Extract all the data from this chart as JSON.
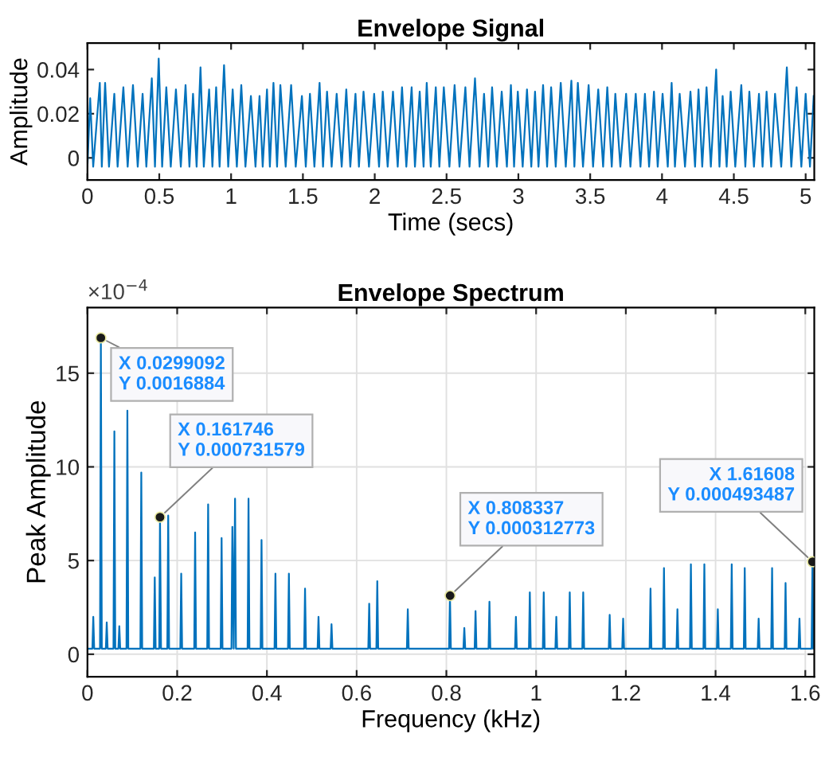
{
  "chart_data": [
    {
      "type": "line",
      "title": "Envelope Signal",
      "xlabel": "Time (secs)",
      "ylabel": "Amplitude",
      "xlim": [
        0,
        5.06
      ],
      "ylim": [
        -0.01,
        0.052
      ],
      "xticks": [
        0,
        0.5,
        1,
        1.5,
        2,
        2.5,
        3,
        3.5,
        4,
        4.5,
        5
      ],
      "yticks": [
        0,
        0.02,
        0.04
      ],
      "grid": false,
      "legend": false,
      "series": [
        {
          "color": "#0072bd",
          "x": [
            0,
            0.019,
            0.04,
            0.086,
            0.1,
            0.123,
            0.15,
            0.187,
            0.21,
            0.25,
            0.28,
            0.317,
            0.35,
            0.384,
            0.41,
            0.448,
            0.47,
            0.496,
            0.52,
            0.549,
            0.58,
            0.616,
            0.65,
            0.683,
            0.71,
            0.735,
            0.76,
            0.787,
            0.81,
            0.847,
            0.87,
            0.896,
            0.92,
            0.951,
            0.98,
            1.011,
            1.04,
            1.071,
            1.1,
            1.138,
            1.17,
            1.198,
            1.22,
            1.25,
            1.27,
            1.295,
            1.32,
            1.343,
            1.38,
            1.418,
            1.45,
            1.493,
            1.52,
            1.549,
            1.58,
            1.616,
            1.64,
            1.668,
            1.7,
            1.735,
            1.77,
            1.802,
            1.83,
            1.866,
            1.89,
            1.922,
            1.96,
            1.996,
            2.03,
            2.056,
            2.09,
            2.127,
            2.16,
            2.19,
            2.22,
            2.257,
            2.28,
            2.313,
            2.34,
            2.362,
            2.39,
            2.425,
            2.45,
            2.481,
            2.52,
            2.556,
            2.59,
            2.631,
            2.66,
            2.698,
            2.73,
            2.761,
            2.79,
            2.817,
            2.85,
            2.884,
            2.92,
            2.948,
            2.97,
            2.996,
            3.03,
            3.06,
            3.09,
            3.116,
            3.14,
            3.172,
            3.2,
            3.228,
            3.26,
            3.295,
            3.33,
            3.369,
            3.39,
            3.414,
            3.45,
            3.489,
            3.52,
            3.556,
            3.59,
            3.619,
            3.65,
            3.675,
            3.71,
            3.75,
            3.78,
            3.817,
            3.85,
            3.881,
            3.91,
            3.944,
            3.97,
            4.004,
            4.04,
            4.067,
            4.09,
            4.123,
            4.16,
            4.198,
            4.23,
            4.254,
            4.28,
            4.31,
            4.34,
            4.377,
            4.4,
            4.422,
            4.45,
            4.478,
            4.51,
            4.552,
            4.58,
            4.608,
            4.64,
            4.675,
            4.7,
            4.728,
            4.76,
            4.787,
            4.83,
            4.869,
            4.9,
            4.937,
            4.97,
            5.0,
            5.03,
            5.056
          ],
          "values": [
            -0.004,
            0.027,
            -0.004,
            0.034,
            -0.004,
            0.034,
            -0.004,
            0.029,
            -0.004,
            0.032,
            -0.004,
            0.033,
            -0.004,
            0.029,
            -0.004,
            0.036,
            -0.004,
            0.045,
            -0.004,
            0.032,
            -0.004,
            0.031,
            -0.004,
            0.033,
            -0.004,
            0.029,
            -0.004,
            0.041,
            -0.004,
            0.031,
            -0.004,
            0.032,
            -0.004,
            0.042,
            -0.004,
            0.031,
            -0.004,
            0.033,
            -0.004,
            0.028,
            -0.004,
            0.028,
            -0.004,
            0.031,
            -0.004,
            0.034,
            -0.004,
            0.033,
            -0.004,
            0.033,
            -0.004,
            0.028,
            -0.004,
            0.029,
            -0.004,
            0.034,
            -0.004,
            0.03,
            -0.004,
            0.029,
            -0.004,
            0.031,
            -0.004,
            0.029,
            -0.004,
            0.03,
            -0.004,
            0.029,
            -0.004,
            0.03,
            -0.004,
            0.03,
            -0.004,
            0.032,
            -0.004,
            0.032,
            -0.004,
            0.03,
            -0.004,
            0.034,
            -0.004,
            0.032,
            -0.004,
            0.032,
            -0.004,
            0.033,
            -0.004,
            0.032,
            -0.004,
            0.036,
            -0.004,
            0.029,
            -0.004,
            0.032,
            -0.004,
            0.03,
            -0.004,
            0.033,
            -0.004,
            0.03,
            -0.004,
            0.031,
            -0.004,
            0.03,
            -0.004,
            0.033,
            -0.004,
            0.032,
            -0.004,
            0.034,
            -0.004,
            0.035,
            -0.004,
            0.034,
            -0.004,
            0.033,
            -0.004,
            0.031,
            -0.004,
            0.032,
            -0.004,
            0.029,
            -0.004,
            0.029,
            -0.004,
            0.029,
            -0.004,
            0.029,
            -0.004,
            0.03,
            -0.004,
            0.029,
            -0.004,
            0.034,
            -0.004,
            0.029,
            -0.004,
            0.03,
            -0.004,
            0.031,
            -0.004,
            0.032,
            -0.004,
            0.04,
            -0.004,
            0.028,
            -0.004,
            0.03,
            -0.004,
            0.033,
            -0.004,
            0.03,
            -0.004,
            0.029,
            -0.004,
            0.03,
            -0.004,
            0.029,
            -0.004,
            0.041,
            -0.004,
            0.032,
            -0.004,
            0.029,
            -0.004,
            0.028
          ]
        }
      ]
    },
    {
      "type": "line",
      "title": "Envelope Spectrum",
      "xlabel": "Frequency (kHz)",
      "ylabel": "Peak Amplitude",
      "xlim": [
        0,
        1.62
      ],
      "ylim": [
        -1.2,
        18.5
      ],
      "xticks": [
        0,
        0.2,
        0.4,
        0.6,
        0.8,
        1,
        1.2,
        1.4,
        1.6
      ],
      "yticks": [
        0,
        5,
        10,
        15
      ],
      "grid": true,
      "legend": false,
      "annotations": [
        "×10$^{−4}$",
        {
          "text": "X 0.0299092\nY 0.0016884",
          "x": 0.0299092,
          "y": 16.884
        },
        {
          "text": "X 0.161746\nY 0.000731579",
          "x": 0.161746,
          "y": 7.31579
        },
        {
          "text": "X 0.808337\nY 0.000312773",
          "x": 0.808337,
          "y": 3.12773
        },
        {
          "text": "X 1.61608\nY 0.000493487",
          "x": 1.61608,
          "y": 4.93487
        }
      ],
      "series": [
        {
          "color": "#0072bd",
          "x": [
            0,
            0.011,
            0.013,
            0.015,
            0.028,
            0.0299,
            0.032,
            0.041,
            0.043,
            0.045,
            0.058,
            0.06,
            0.062,
            0.069,
            0.071,
            0.073,
            0.087,
            0.089,
            0.091,
            0.118,
            0.12,
            0.122,
            0.148,
            0.15,
            0.152,
            0.16,
            0.1617,
            0.164,
            0.178,
            0.18,
            0.182,
            0.207,
            0.209,
            0.211,
            0.238,
            0.24,
            0.242,
            0.267,
            0.269,
            0.271,
            0.297,
            0.299,
            0.301,
            0.321,
            0.323,
            0.326,
            0.329,
            0.331,
            0.357,
            0.359,
            0.361,
            0.386,
            0.388,
            0.39,
            0.417,
            0.419,
            0.421,
            0.447,
            0.449,
            0.451,
            0.483,
            0.485,
            0.487,
            0.513,
            0.515,
            0.517,
            0.542,
            0.544,
            0.546,
            0.626,
            0.628,
            0.63,
            0.644,
            0.646,
            0.648,
            0.712,
            0.714,
            0.716,
            0.806,
            0.808,
            0.81,
            0.838,
            0.84,
            0.842,
            0.863,
            0.865,
            0.867,
            0.894,
            0.896,
            0.898,
            0.953,
            0.955,
            0.957,
            0.984,
            0.986,
            0.988,
            1.015,
            1.017,
            1.019,
            1.043,
            1.045,
            1.047,
            1.073,
            1.075,
            1.077,
            1.103,
            1.105,
            1.107,
            1.162,
            1.164,
            1.166,
            1.192,
            1.194,
            1.196,
            1.253,
            1.255,
            1.257,
            1.283,
            1.285,
            1.287,
            1.313,
            1.315,
            1.317,
            1.343,
            1.345,
            1.347,
            1.373,
            1.375,
            1.377,
            1.403,
            1.405,
            1.407,
            1.434,
            1.436,
            1.438,
            1.463,
            1.465,
            1.467,
            1.494,
            1.496,
            1.498,
            1.524,
            1.526,
            1.528,
            1.554,
            1.556,
            1.558,
            1.585,
            1.587,
            1.589,
            1.614,
            1.616,
            1.618
          ],
          "values": [
            0.3,
            0.3,
            2.0,
            0.3,
            0.3,
            16.9,
            0.3,
            0.3,
            1.7,
            0.3,
            0.3,
            11.9,
            0.3,
            0.3,
            1.5,
            0.3,
            0.3,
            13.0,
            0.3,
            0.3,
            9.7,
            0.3,
            0.3,
            4.1,
            0.3,
            0.3,
            7.3,
            0.3,
            0.3,
            7.4,
            0.3,
            0.3,
            4.3,
            0.3,
            0.3,
            6.5,
            0.3,
            0.3,
            8.0,
            0.3,
            0.3,
            6.2,
            0.3,
            0.3,
            6.8,
            0.3,
            8.3,
            0.3,
            0.3,
            8.3,
            0.3,
            0.3,
            6.1,
            0.3,
            0.3,
            4.3,
            0.3,
            0.3,
            4.3,
            0.3,
            0.3,
            3.5,
            0.3,
            0.3,
            2.0,
            0.3,
            0.3,
            1.6,
            0.3,
            0.3,
            2.7,
            0.3,
            0.3,
            3.9,
            0.3,
            0.3,
            2.4,
            0.3,
            0.3,
            3.1,
            0.3,
            0.3,
            1.4,
            0.3,
            0.3,
            2.3,
            0.3,
            0.3,
            2.8,
            0.3,
            0.3,
            2.0,
            0.3,
            0.3,
            3.3,
            0.3,
            0.3,
            3.3,
            0.3,
            0.3,
            2.0,
            0.3,
            0.3,
            3.3,
            0.3,
            0.3,
            3.3,
            0.3,
            0.3,
            2.1,
            0.3,
            0.3,
            1.9,
            0.3,
            0.3,
            3.5,
            0.3,
            0.3,
            4.6,
            0.3,
            0.3,
            2.4,
            0.3,
            0.3,
            4.8,
            0.3,
            0.3,
            4.8,
            0.3,
            0.3,
            2.4,
            0.3,
            0.3,
            4.8,
            0.3,
            0.3,
            4.6,
            0.3,
            0.3,
            1.9,
            0.3,
            0.3,
            4.6,
            0.3,
            0.3,
            3.8,
            0.3,
            0.3,
            1.9,
            0.3,
            0.3,
            4.9,
            0.3
          ]
        }
      ]
    }
  ]
}
